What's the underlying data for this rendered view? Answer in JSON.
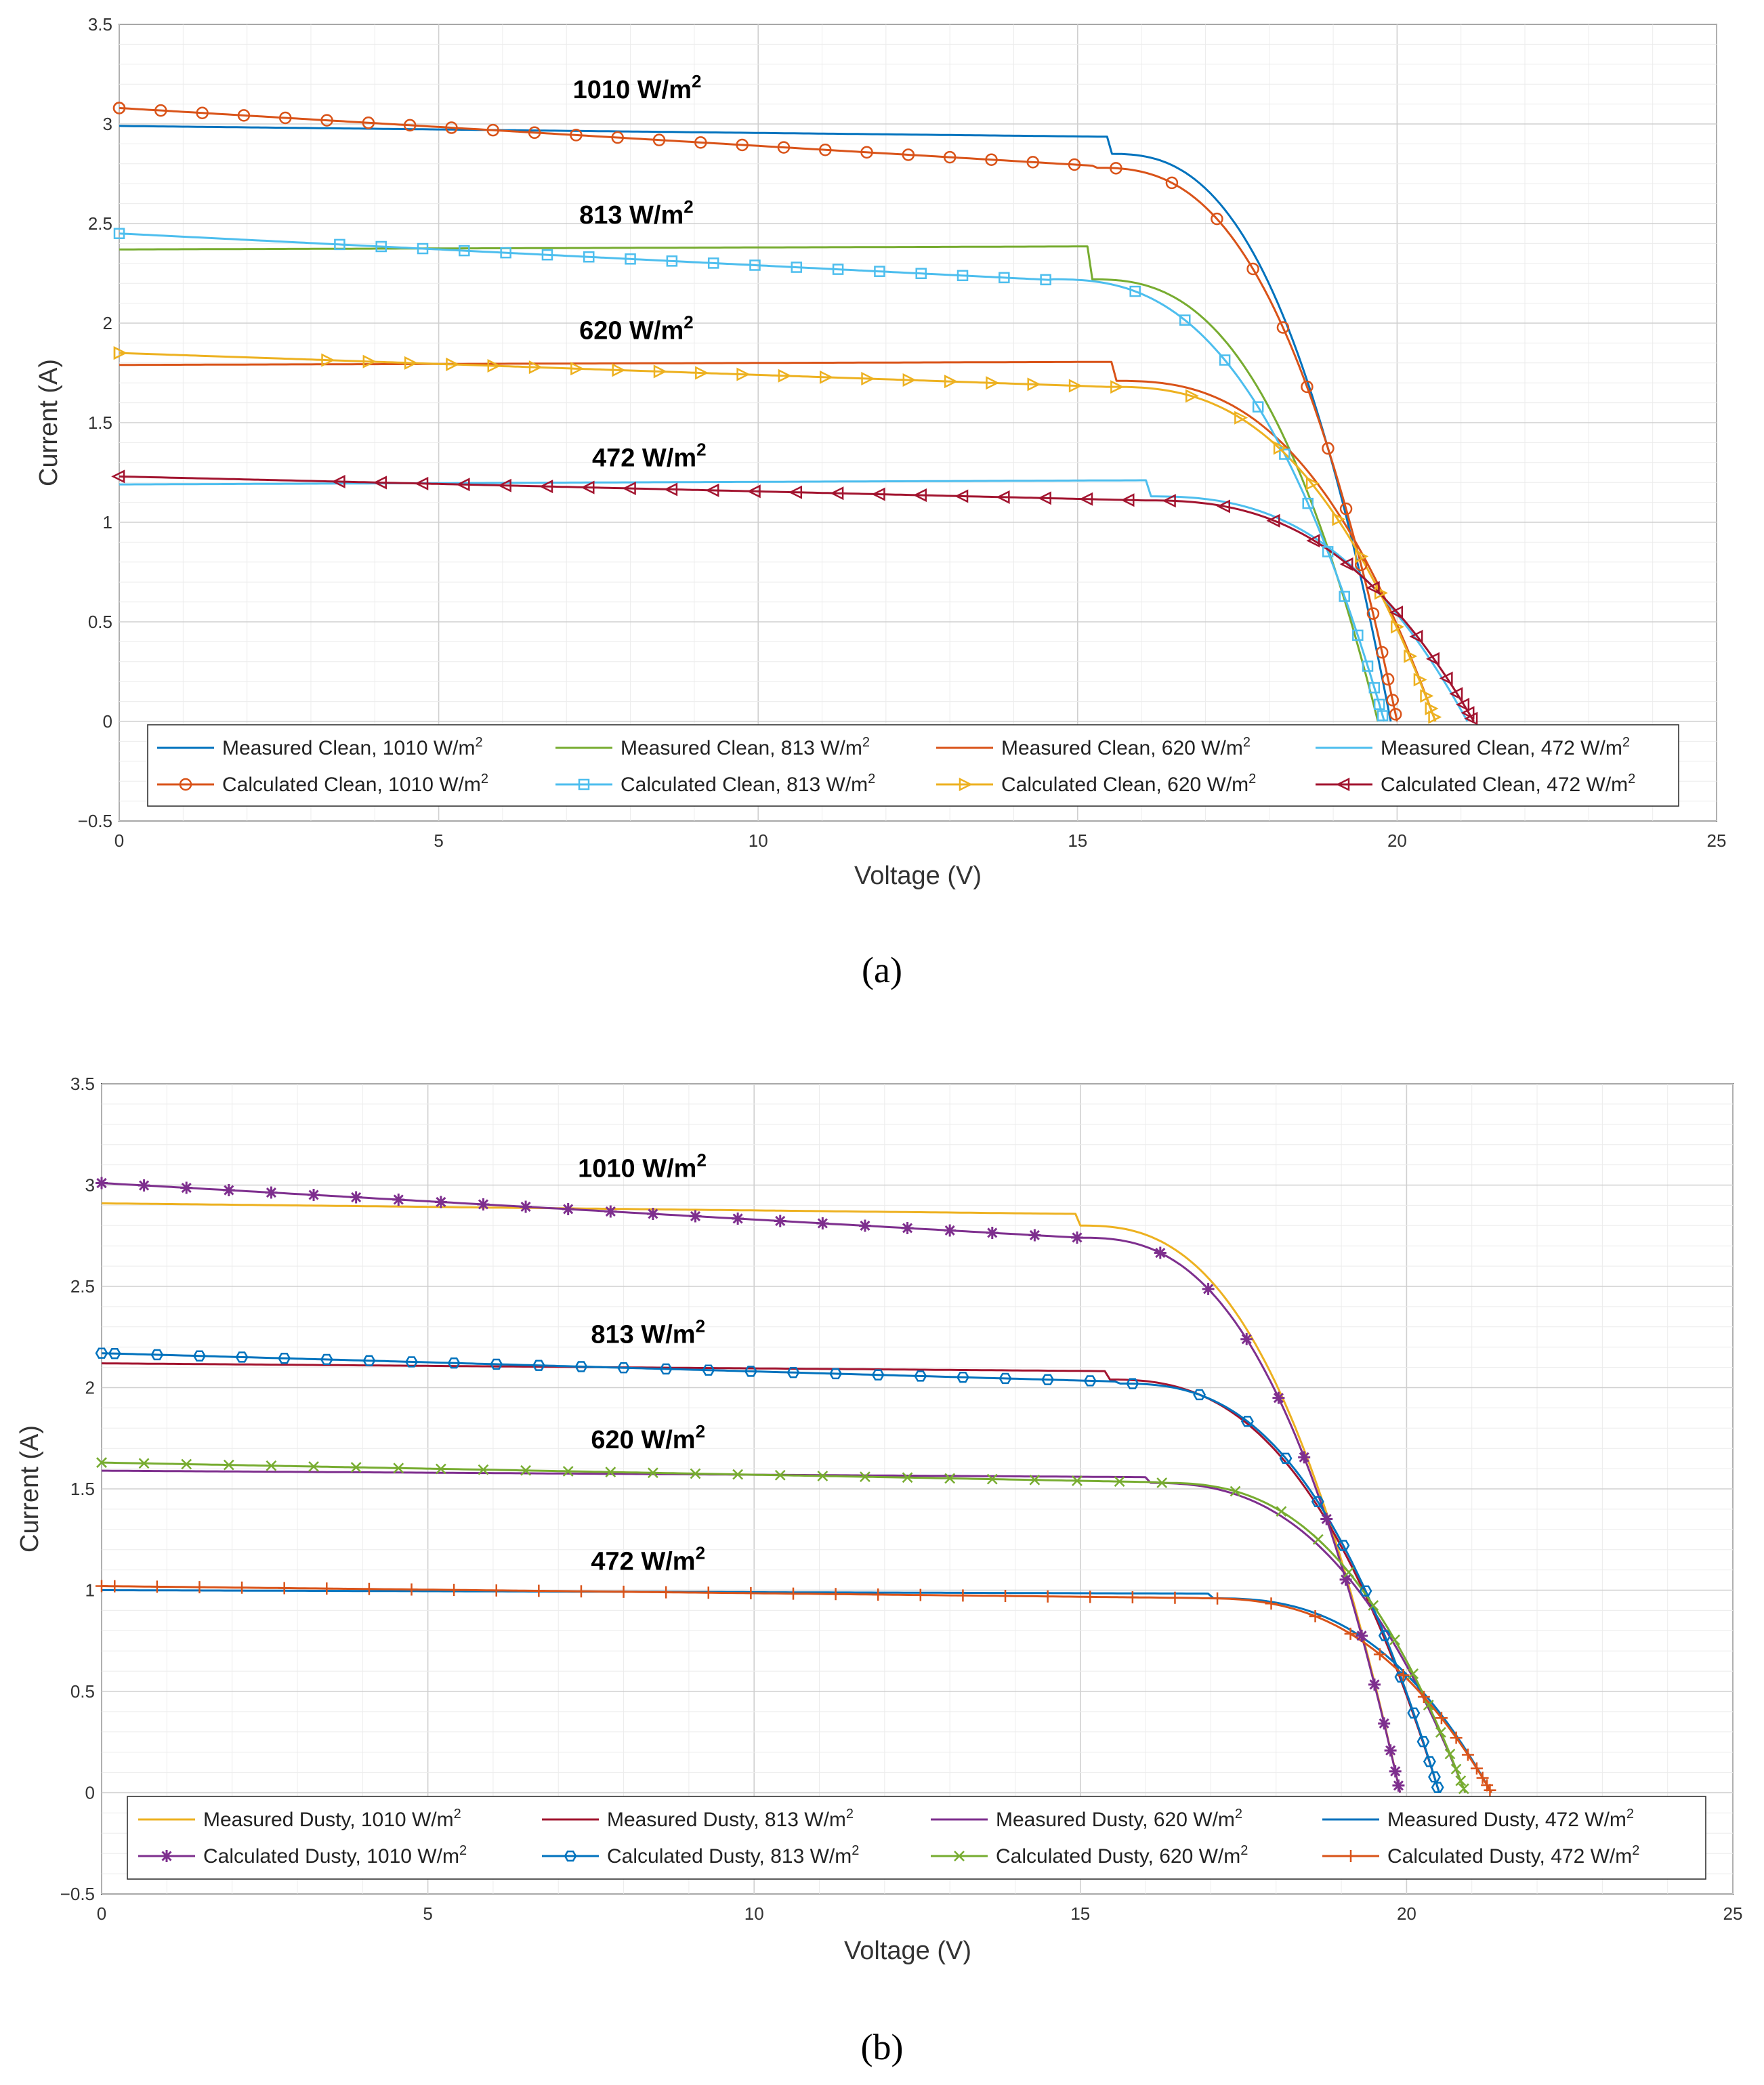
{
  "chart_data": [
    {
      "type": "line",
      "panel_label": "(a)",
      "xlabel": "Voltage (V)",
      "ylabel": "Current (A)",
      "xlim": [
        0,
        25
      ],
      "ylim": [
        -0.5,
        3.5
      ],
      "x_ticks": [
        "0",
        "5",
        "10",
        "15",
        "20",
        "25"
      ],
      "y_ticks": [
        "-0.5",
        "0",
        "0.5",
        "1",
        "1.5",
        "2",
        "2.5",
        "3",
        "3.5"
      ],
      "grid": true,
      "legend_position": "bottom",
      "annotations": [
        {
          "text": "1010 W/m",
          "sup": "2",
          "x": 7.1,
          "y": 3.13
        },
        {
          "text": "813 W/m",
          "sup": "2",
          "x": 7.2,
          "y": 2.5
        },
        {
          "text": "620 W/m",
          "sup": "2",
          "x": 7.2,
          "y": 1.92
        },
        {
          "text": "472 W/m",
          "sup": "2",
          "x": 7.4,
          "y": 1.28
        }
      ],
      "series": [
        {
          "name": "Measured Clean, 1010 W/m",
          "sup": "2",
          "kind": "measured",
          "color": "#0072BD",
          "marker": "none",
          "isc": 2.99,
          "voc": 19.9,
          "vk": 15.5,
          "ik": 2.85,
          "slope": 0.0035
        },
        {
          "name": "Measured Clean, 813 W/m",
          "sup": "2",
          "kind": "measured",
          "color": "#77AC30",
          "marker": "none",
          "isc": 2.37,
          "voc": 19.7,
          "vk": 15.2,
          "ik": 2.22,
          "slope": -0.001
        },
        {
          "name": "Measured Clean, 620 W/m",
          "sup": "2",
          "kind": "measured",
          "color": "#D95319",
          "marker": "none",
          "isc": 1.79,
          "voc": 20.6,
          "vk": 15.6,
          "ik": 1.71,
          "slope": -0.001
        },
        {
          "name": "Measured Clean, 472 W/m",
          "sup": "2",
          "kind": "measured",
          "color": "#4DBEEE",
          "marker": "none",
          "isc": 1.19,
          "voc": 21.1,
          "vk": 16.1,
          "ik": 1.13,
          "slope": -0.0013
        },
        {
          "name": "Calculated Clean, 1010 W/m",
          "sup": "2",
          "kind": "calculated",
          "color": "#D95319",
          "marker": "circle",
          "isc": 3.08,
          "voc": 20.0,
          "vk": 15.3,
          "ik": 2.78,
          "slope": 0.019
        },
        {
          "name": "Calculated Clean, 813 W/m",
          "sup": "2",
          "kind": "calculated",
          "color": "#4DBEEE",
          "marker": "square",
          "isc": 2.45,
          "voc": 19.8,
          "vk": 14.6,
          "ik": 2.22,
          "slope": 0.016
        },
        {
          "name": "Calculated Clean, 620 W/m",
          "sup": "2",
          "kind": "calculated",
          "color": "#EDB120",
          "marker": "triangle-right",
          "isc": 1.85,
          "voc": 20.6,
          "vk": 15.5,
          "ik": 1.68,
          "slope": 0.011
        },
        {
          "name": "Calculated Clean, 472 W/m",
          "sup": "2",
          "kind": "calculated",
          "color": "#A2142F",
          "marker": "triangle-left",
          "isc": 1.23,
          "voc": 21.2,
          "vk": 16.0,
          "ik": 1.11,
          "slope": 0.0075
        }
      ]
    },
    {
      "type": "line",
      "panel_label": "(b)",
      "xlabel": "Voltage (V)",
      "ylabel": "Current (A)",
      "xlim": [
        0,
        25
      ],
      "ylim": [
        -0.5,
        3.5
      ],
      "x_ticks": [
        "0",
        "5",
        "10",
        "15",
        "20",
        "25"
      ],
      "y_ticks": [
        "-0.5",
        "0",
        "0.5",
        "1",
        "1.5",
        "2",
        "2.5",
        "3",
        "3.5"
      ],
      "grid": true,
      "legend_position": "bottom",
      "annotations": [
        {
          "text": "1010 W/m",
          "sup": "2",
          "x": 7.3,
          "y": 3.04
        },
        {
          "text": "813 W/m",
          "sup": "2",
          "x": 7.5,
          "y": 2.22
        },
        {
          "text": "620 W/m",
          "sup": "2",
          "x": 7.5,
          "y": 1.7
        },
        {
          "text": "472 W/m",
          "sup": "2",
          "x": 7.5,
          "y": 1.1
        }
      ],
      "series": [
        {
          "name": "Measured Dusty, 1010 W/m",
          "sup": "2",
          "kind": "measured",
          "color": "#EDB120",
          "marker": "none",
          "isc": 2.91,
          "voc": 19.9,
          "vk": 15.0,
          "ik": 2.8,
          "slope": 0.0035
        },
        {
          "name": "Measured Dusty, 813 W/m",
          "sup": "2",
          "kind": "measured",
          "color": "#A2142F",
          "marker": "none",
          "isc": 2.12,
          "voc": 20.5,
          "vk": 15.4,
          "ik": 2.04,
          "slope": 0.0025
        },
        {
          "name": "Measured Dusty, 620 W/m",
          "sup": "2",
          "kind": "measured",
          "color": "#7E2F8E",
          "marker": "none",
          "isc": 1.59,
          "voc": 20.9,
          "vk": 16.0,
          "ik": 1.53,
          "slope": 0.002
        },
        {
          "name": "Measured Dusty, 472 W/m",
          "sup": "2",
          "kind": "measured",
          "color": "#0072BD",
          "marker": "none",
          "isc": 1.0,
          "voc": 21.3,
          "vk": 17.0,
          "ik": 0.96,
          "slope": 0.001
        },
        {
          "name": "Calculated Dusty, 1010 W/m",
          "sup": "2",
          "kind": "calculated",
          "color": "#7E2F8E",
          "marker": "star",
          "isc": 3.01,
          "voc": 19.9,
          "vk": 15.0,
          "ik": 2.74,
          "slope": 0.018
        },
        {
          "name": "Calculated Dusty, 813 W/m",
          "sup": "2",
          "kind": "calculated",
          "color": "#0072BD",
          "marker": "hexagon",
          "isc": 2.17,
          "voc": 20.5,
          "vk": 15.6,
          "ik": 2.02,
          "slope": 0.009
        },
        {
          "name": "Calculated Dusty, 620 W/m",
          "sup": "2",
          "kind": "calculated",
          "color": "#77AC30",
          "marker": "x",
          "isc": 1.63,
          "voc": 20.9,
          "vk": 16.2,
          "ik": 1.53,
          "slope": 0.006
        },
        {
          "name": "Calculated Dusty, 472 W/m",
          "sup": "2",
          "kind": "calculated",
          "color": "#D95319",
          "marker": "plus",
          "isc": 1.02,
          "voc": 21.3,
          "vk": 16.8,
          "ik": 0.96,
          "slope": 0.0035
        }
      ]
    }
  ]
}
